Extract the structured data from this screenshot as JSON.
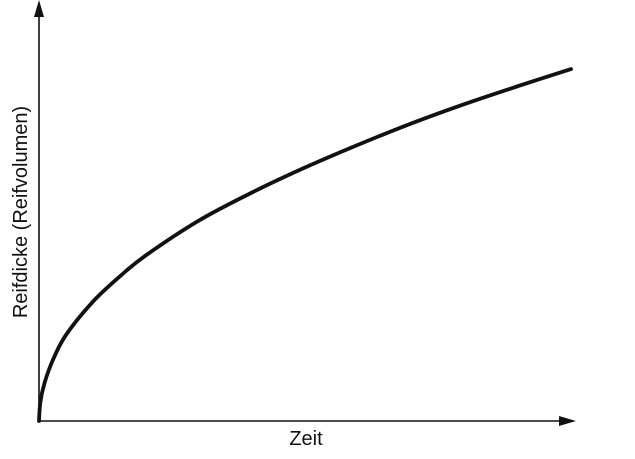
{
  "chart_data": {
    "type": "line",
    "title": "",
    "xlabel": "Zeit",
    "ylabel": "Reifdicke (Reifvolumen)",
    "xlim": [
      0,
      1
    ],
    "ylim": [
      0,
      1
    ],
    "grid": false,
    "legend": "none",
    "x_ticks": [],
    "y_ticks": [],
    "series": [
      {
        "x": [
          0,
          0.0025,
          0.01,
          0.025,
          0.05,
          0.1,
          0.15,
          0.2,
          0.3,
          0.4,
          0.5,
          0.6,
          0.7,
          0.8,
          0.9,
          1.0
        ],
        "y": [
          0,
          0.049,
          0.098,
          0.157,
          0.225,
          0.312,
          0.378,
          0.435,
          0.527,
          0.601,
          0.667,
          0.727,
          0.783,
          0.834,
          0.881,
          0.926
        ]
      }
    ]
  },
  "colors": {
    "axis": "#111111",
    "curve": "#111111"
  }
}
